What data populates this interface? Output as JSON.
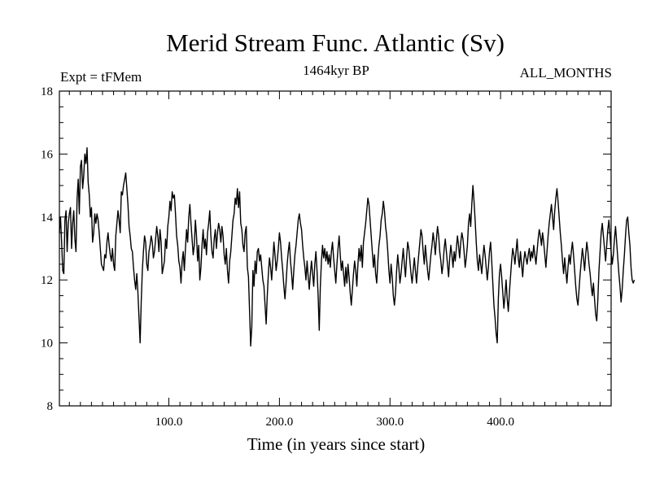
{
  "chart_data": {
    "type": "line",
    "title": "Merid Stream Func. Atlantic (Sv)",
    "subtitle_left": "Expt = tFMem",
    "subtitle_center": "1464kyr BP",
    "subtitle_right": "ALL_MONTHS",
    "xlabel": "Time (in years since start)",
    "ylabel": "",
    "xlim": [
      1,
      500
    ],
    "ylim": [
      8,
      18
    ],
    "xticks": [
      100,
      200,
      300,
      400
    ],
    "xtick_labels": [
      "100.0",
      "200.0",
      "300.0",
      "400.0"
    ],
    "yticks": [
      8,
      10,
      12,
      14,
      16,
      18
    ],
    "ytick_labels": [
      "8",
      "10",
      "12",
      "14",
      "16",
      "18"
    ],
    "series": [
      {
        "name": "Merid Stream Func. Atlantic",
        "color": "#000000",
        "x_start": 1,
        "x_step": 1,
        "values": [
          13.5,
          14.0,
          13.2,
          12.3,
          12.2,
          13.9,
          14.2,
          12.9,
          13.8,
          14.1,
          14.3,
          13.0,
          13.8,
          14.2,
          13.3,
          12.9,
          14.6,
          15.2,
          14.1,
          15.6,
          15.8,
          14.9,
          15.3,
          16.0,
          15.7,
          16.2,
          15.1,
          14.7,
          14.0,
          14.3,
          13.2,
          13.5,
          14.1,
          13.8,
          14.1,
          13.9,
          13.5,
          13.0,
          12.5,
          12.4,
          12.3,
          12.8,
          12.7,
          13.2,
          13.5,
          13.1,
          12.8,
          12.6,
          13.0,
          12.5,
          12.3,
          13.4,
          13.8,
          14.2,
          13.9,
          13.5,
          14.8,
          14.7,
          15.0,
          15.2,
          15.4,
          14.9,
          14.4,
          13.7,
          13.4,
          13.0,
          12.9,
          12.4,
          12.0,
          11.7,
          12.2,
          11.6,
          10.8,
          10.0,
          11.3,
          12.3,
          12.9,
          13.4,
          13.2,
          12.5,
          12.3,
          12.9,
          13.1,
          13.4,
          13.2,
          12.7,
          12.9,
          13.3,
          13.7,
          13.4,
          12.9,
          13.6,
          13.2,
          12.2,
          12.4,
          12.6,
          13.3,
          13.0,
          13.7,
          14.0,
          14.5,
          14.2,
          14.8,
          14.6,
          14.7,
          14.1,
          13.4,
          13.1,
          12.6,
          12.4,
          11.9,
          12.6,
          12.9,
          12.3,
          13.0,
          13.6,
          13.2,
          14.0,
          14.4,
          13.8,
          13.3,
          12.8,
          13.1,
          13.9,
          13.4,
          12.6,
          13.1,
          12.0,
          12.4,
          13.1,
          13.6,
          13.0,
          13.3,
          12.8,
          13.5,
          13.8,
          14.2,
          13.4,
          12.9,
          12.7,
          13.3,
          13.6,
          13.0,
          13.5,
          13.8,
          13.6,
          13.2,
          13.7,
          13.4,
          12.8,
          12.5,
          13.0,
          12.3,
          11.9,
          12.6,
          12.9,
          13.4,
          13.9,
          14.1,
          14.6,
          14.4,
          14.9,
          14.3,
          14.8,
          13.8,
          13.6,
          13.1,
          12.9,
          13.5,
          13.7,
          12.4,
          12.1,
          11.0,
          9.9,
          10.5,
          12.3,
          11.8,
          12.6,
          12.2,
          12.9,
          13.0,
          12.6,
          12.8,
          12.4,
          12.0,
          11.8,
          11.2,
          10.6,
          11.5,
          12.2,
          12.7,
          12.4,
          12.0,
          12.6,
          13.2,
          12.8,
          12.3,
          12.6,
          13.0,
          13.5,
          13.2,
          12.7,
          12.3,
          11.8,
          11.4,
          11.9,
          12.5,
          12.9,
          13.2,
          12.6,
          12.2,
          11.7,
          12.3,
          12.8,
          13.1,
          13.5,
          13.9,
          14.1,
          13.8,
          13.6,
          13.1,
          12.7,
          12.4,
          12.0,
          12.6,
          12.1,
          11.7,
          12.2,
          12.6,
          12.2,
          11.8,
          12.5,
          12.9,
          12.3,
          11.5,
          10.4,
          11.8,
          12.6,
          13.1,
          12.7,
          13.0,
          12.6,
          12.9,
          12.5,
          12.8,
          12.4,
          12.9,
          13.2,
          12.7,
          12.3,
          11.9,
          12.5,
          13.0,
          13.4,
          12.8,
          12.3,
          12.6,
          12.2,
          11.8,
          12.4,
          11.9,
          12.5,
          12.1,
          11.6,
          11.2,
          11.7,
          12.2,
          12.6,
          12.3,
          11.8,
          12.5,
          13.0,
          12.6,
          13.1,
          12.4,
          13.2,
          13.5,
          13.8,
          14.2,
          14.6,
          14.4,
          13.9,
          13.4,
          12.9,
          12.4,
          12.8,
          12.2,
          11.9,
          12.6,
          13.1,
          13.4,
          13.9,
          14.1,
          14.5,
          14.2,
          13.7,
          13.4,
          12.9,
          12.3,
          11.9,
          12.5,
          12.1,
          11.5,
          11.2,
          11.6,
          12.3,
          12.8,
          12.4,
          11.9,
          12.2,
          12.6,
          13.0,
          12.5,
          12.1,
          12.7,
          13.2,
          13.0,
          12.6,
          12.2,
          11.9,
          12.3,
          12.7,
          12.3,
          11.9,
          12.4,
          12.8,
          13.2,
          13.6,
          13.4,
          12.9,
          12.5,
          13.1,
          12.7,
          12.3,
          12.0,
          12.4,
          12.8,
          13.1,
          13.5,
          13.2,
          12.8,
          13.3,
          13.7,
          13.4,
          12.9,
          12.6,
          12.2,
          12.5,
          13.0,
          13.3,
          12.9,
          12.5,
          12.1,
          12.7,
          13.1,
          12.8,
          12.4,
          12.9,
          12.6,
          13.0,
          13.4,
          13.1,
          12.7,
          13.2,
          13.5,
          13.3,
          12.9,
          12.4,
          12.7,
          13.1,
          13.8,
          14.1,
          13.7,
          14.4,
          15.0,
          14.5,
          13.9,
          13.2,
          12.6,
          12.3,
          12.8,
          12.5,
          12.2,
          12.7,
          13.1,
          12.8,
          12.4,
          12.0,
          12.4,
          12.9,
          13.2,
          12.6,
          11.9,
          11.2,
          10.8,
          10.3,
          10.0,
          11.4,
          12.2,
          12.5,
          12.1,
          11.6,
          11.1,
          11.5,
          12.0,
          11.4,
          11.0,
          11.6,
          12.1,
          12.6,
          13.0,
          12.8,
          12.5,
          12.9,
          13.3,
          12.7,
          12.4,
          12.9,
          12.5,
          12.1,
          12.6,
          12.9,
          12.7,
          12.5,
          12.8,
          13.0,
          12.6,
          12.9,
          12.7,
          13.1,
          12.8,
          12.5,
          12.9,
          13.3,
          13.6,
          13.4,
          13.1,
          13.5,
          13.2,
          12.8,
          12.4,
          12.9,
          13.4,
          13.8,
          14.1,
          14.4,
          14.0,
          13.6,
          14.2,
          14.6,
          14.9,
          14.5,
          14.0,
          13.5,
          13.1,
          12.6,
          12.2,
          12.7,
          12.3,
          11.9,
          12.4,
          12.8,
          12.5,
          12.9,
          13.2,
          12.8,
          12.3,
          11.8,
          11.4,
          11.2,
          11.7,
          12.2,
          12.6,
          13.0,
          12.7,
          12.3,
          12.8,
          13.2,
          12.9,
          12.5,
          12.2,
          11.8,
          11.5,
          11.9,
          11.4,
          10.9,
          10.7,
          11.4,
          12.3,
          12.9,
          13.5,
          13.8,
          13.4,
          13.0,
          12.6,
          13.1,
          13.6,
          13.9,
          13.4,
          12.9,
          12.5,
          12.8,
          13.3,
          13.7,
          13.2,
          12.7,
          12.2,
          11.8,
          11.3,
          11.7,
          12.3,
          12.8,
          13.4,
          13.9,
          14.0,
          13.5,
          13.1,
          12.4,
          12.0,
          11.9,
          12.0
        ]
      }
    ]
  }
}
